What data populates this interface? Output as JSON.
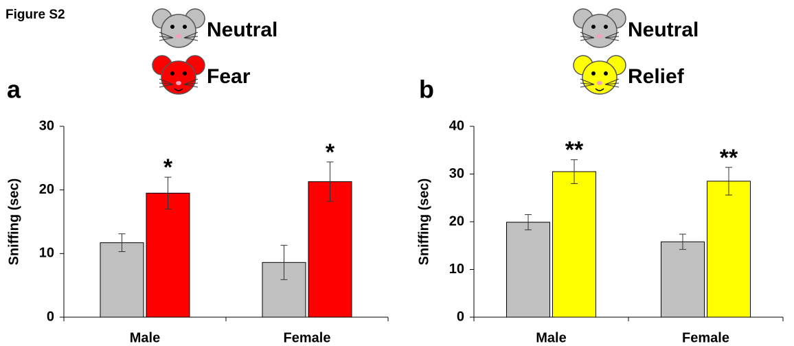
{
  "figure_label": "Figure S2",
  "chart_data": [
    {
      "type": "bar",
      "panel": "a",
      "ylabel": "Sniffing (sec)",
      "categories": [
        "Male",
        "Female"
      ],
      "series": [
        {
          "name": "Neutral",
          "color": "#c0c0c0",
          "values": [
            11.7,
            8.6
          ],
          "errors": [
            1.4,
            2.7
          ]
        },
        {
          "name": "Fear",
          "color": "#ff0000",
          "values": [
            19.5,
            21.3
          ],
          "errors": [
            2.5,
            3.1
          ],
          "significance": [
            "*",
            "*"
          ]
        }
      ],
      "ylim": [
        0,
        30
      ],
      "yticks": [
        0,
        10,
        20,
        30
      ]
    },
    {
      "type": "bar",
      "panel": "b",
      "ylabel": "Sniffing (sec)",
      "categories": [
        "Male",
        "Female"
      ],
      "series": [
        {
          "name": "Neutral",
          "color": "#c0c0c0",
          "values": [
            19.9,
            15.8
          ],
          "errors": [
            1.6,
            1.6
          ]
        },
        {
          "name": "Relief",
          "color": "#ffff00",
          "values": [
            30.5,
            28.5
          ],
          "errors": [
            2.5,
            2.9
          ],
          "significance": [
            "**",
            "**"
          ]
        }
      ],
      "ylim": [
        0,
        40
      ],
      "yticks": [
        0,
        10,
        20,
        30,
        40
      ]
    }
  ]
}
